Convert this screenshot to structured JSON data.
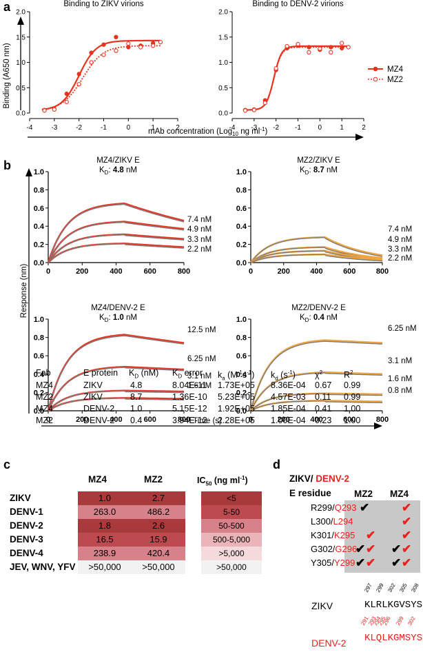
{
  "panels": {
    "a": "a",
    "b": "b",
    "c": "c",
    "d": "d"
  },
  "chart_data": [
    {
      "type": "line",
      "id": "a1",
      "title": "Binding to ZIKV virions",
      "ylabel": "Binding (A650 nm)",
      "xlabel": "",
      "xlim": [
        -4,
        2
      ],
      "ylim": [
        0,
        2.0
      ],
      "xticks": [
        "-4",
        "-3",
        "-2",
        "-1",
        "0",
        "1",
        "2"
      ],
      "yticks": [
        "0.0",
        "0.5",
        "1.0",
        "1.5",
        "2.0"
      ],
      "series": [
        {
          "name": "MZ4",
          "color": "#e8341c",
          "style": "solid",
          "marker": "filled",
          "fit": {
            "bottom": 0.05,
            "top": 1.43,
            "ec50": -2.0,
            "hill": 1.25
          },
          "points": [
            [
              -3.4,
              0.06
            ],
            [
              -3.0,
              0.08
            ],
            [
              -2.5,
              0.38
            ],
            [
              -2.0,
              0.77
            ],
            [
              -1.5,
              1.19
            ],
            [
              -1.0,
              1.35
            ],
            [
              -0.5,
              1.5
            ],
            [
              0.0,
              1.3
            ],
            [
              0.5,
              1.33
            ],
            [
              1.0,
              1.38
            ]
          ]
        },
        {
          "name": "MZ2",
          "color": "#e8341c",
          "style": "dotted",
          "marker": "open",
          "fit": {
            "bottom": 0.05,
            "top": 1.33,
            "ec50": -1.85,
            "hill": 1.05
          },
          "points": [
            [
              -3.4,
              0.05
            ],
            [
              -3.0,
              0.07
            ],
            [
              -2.5,
              0.22
            ],
            [
              -2.0,
              0.57
            ],
            [
              -1.5,
              1.0
            ],
            [
              -1.0,
              1.15
            ],
            [
              -0.5,
              1.23
            ],
            [
              0.0,
              1.37
            ],
            [
              0.5,
              1.3
            ],
            [
              1.0,
              1.33
            ],
            [
              1.3,
              1.4
            ]
          ]
        }
      ]
    },
    {
      "type": "line",
      "id": "a2",
      "title": "Binding to DENV-2 virions",
      "ylabel": "",
      "xlabel": "",
      "xlim": [
        -4,
        2
      ],
      "ylim": [
        0,
        2.0
      ],
      "xticks": [
        "-4",
        "-3",
        "-2",
        "-1",
        "0",
        "1",
        "2"
      ],
      "yticks": [
        "0.0",
        "0.5",
        "1.0",
        "1.5",
        "2.0"
      ],
      "series": [
        {
          "name": "MZ4",
          "color": "#e8341c",
          "style": "solid",
          "marker": "filled",
          "fit": {
            "bottom": 0.06,
            "top": 1.32,
            "ec50": -2.1,
            "hill": 2.5
          },
          "points": [
            [
              -3.4,
              0.06
            ],
            [
              -3.0,
              0.07
            ],
            [
              -2.5,
              0.25
            ],
            [
              -2.0,
              0.85
            ],
            [
              -1.5,
              1.28
            ],
            [
              -1.0,
              1.33
            ],
            [
              -0.5,
              1.3
            ],
            [
              0.0,
              1.25
            ],
            [
              0.5,
              1.3
            ],
            [
              1.0,
              1.28
            ]
          ]
        },
        {
          "name": "MZ2",
          "color": "#e8341c",
          "style": "dotted",
          "marker": "open",
          "fit": {
            "bottom": 0.06,
            "top": 1.3,
            "ec50": -2.1,
            "hill": 2.5
          },
          "points": [
            [
              -3.4,
              0.05
            ],
            [
              -3.0,
              0.06
            ],
            [
              -2.5,
              0.2
            ],
            [
              -2.0,
              0.88
            ],
            [
              -1.5,
              1.32
            ],
            [
              -1.0,
              1.36
            ],
            [
              -0.5,
              1.2
            ],
            [
              0.0,
              1.27
            ],
            [
              0.5,
              1.2
            ],
            [
              1.0,
              1.38
            ],
            [
              1.3,
              1.3
            ]
          ]
        }
      ]
    },
    {
      "type": "line",
      "id": "b1",
      "title": "MZ4/ZIKV E",
      "kd_prefix": "K",
      "kd_sub": "D",
      "kd_value": "4.8",
      "kd_unit": "nM",
      "xlim": [
        0,
        800
      ],
      "ylim": [
        0,
        1.0
      ],
      "xticks": [
        "0",
        "200",
        "400",
        "600",
        "800"
      ],
      "yticks": [
        "0.0",
        "0.2",
        "0.4",
        "0.6",
        "0.8",
        "1.0"
      ],
      "fit_color": "#e23a2b",
      "series": [
        {
          "name": "7.4 nM",
          "peak": 0.65,
          "end": 0.46,
          "k": 0.0035
        },
        {
          "name": "4.9 nM",
          "peak": 0.45,
          "end": 0.37,
          "k": 0.0035
        },
        {
          "name": "3.3 nM",
          "peak": 0.31,
          "end": 0.26,
          "k": 0.0035
        },
        {
          "name": "2.2 nM",
          "peak": 0.21,
          "end": 0.17,
          "k": 0.0035
        }
      ]
    },
    {
      "type": "line",
      "id": "b2",
      "title": "MZ2/ZIKV E",
      "kd_prefix": "K",
      "kd_sub": "D",
      "kd_value": "8.7",
      "kd_unit": "nM",
      "xlim": [
        0,
        800
      ],
      "ylim": [
        0,
        1.0
      ],
      "xticks": [
        "0",
        "200",
        "400",
        "600",
        "800"
      ],
      "yticks": [
        "0.0",
        "0.2",
        "0.4",
        "0.6",
        "0.8",
        "1.0"
      ],
      "fit_color": "#f0a540",
      "series": [
        {
          "name": "7.4 nM",
          "peak": 0.28,
          "end": 0.08,
          "k": 0.006
        },
        {
          "name": "4.9 nM",
          "peak": 0.17,
          "end": 0.05,
          "k": 0.006
        },
        {
          "name": "3.3 nM",
          "peak": 0.13,
          "end": 0.04,
          "k": 0.006
        },
        {
          "name": "2.2 nM",
          "peak": 0.09,
          "end": 0.03,
          "k": 0.006
        }
      ]
    },
    {
      "type": "line",
      "id": "b3",
      "title": "MZ4/DENV-2 E",
      "kd_prefix": "K",
      "kd_sub": "D",
      "kd_value": "1.0",
      "kd_unit": "nM",
      "xlim": [
        0,
        800
      ],
      "ylim": [
        0,
        1.0
      ],
      "xticks": [
        "0",
        "200",
        "400",
        "600",
        "800"
      ],
      "yticks": [
        "0.0",
        "0.2",
        "0.4",
        "0.6",
        "0.8",
        "1.0"
      ],
      "fit_color": "#e23a2b",
      "series": [
        {
          "name": "12.5 nM",
          "peak": 0.83,
          "end": 0.74,
          "k": 0.003
        },
        {
          "name": "6.25 nM",
          "peak": 0.48,
          "end": 0.45,
          "k": 0.003
        },
        {
          "name": "3.1 nM",
          "peak": 0.22,
          "end": 0.21,
          "k": 0.003
        },
        {
          "name": "1.6 nM",
          "peak": 0.14,
          "end": 0.13,
          "k": 0.003
        }
      ]
    },
    {
      "type": "line",
      "id": "b4",
      "title": "MZ2/DENV-2 E",
      "kd_prefix": "K",
      "kd_sub": "D",
      "kd_value": "0.4",
      "kd_unit": "nM",
      "xlim": [
        0,
        800
      ],
      "ylim": [
        0,
        1.0
      ],
      "xticks": [
        "0",
        "200",
        "400",
        "600",
        "800"
      ],
      "yticks": [
        "0.0",
        "0.2",
        "0.4",
        "0.6",
        "0.8",
        "1.0"
      ],
      "fit_color": "#f0a540",
      "series": [
        {
          "name": "6.25 nM",
          "peak": 0.77,
          "end": 0.74,
          "k": 0.007
        },
        {
          "name": "3.1 nM",
          "peak": 0.42,
          "end": 0.4,
          "k": 0.007
        },
        {
          "name": "1.6 nM",
          "peak": 0.19,
          "end": 0.18,
          "k": 0.007
        },
        {
          "name": "0.8 nM",
          "peak": 0.11,
          "end": 0.1,
          "k": 0.007
        }
      ]
    }
  ],
  "panel_a": {
    "xlabel_prefix": "mAb concentration (Log",
    "xlabel_sub": "10",
    "xlabel_suffix": " ng ml",
    "xlabel_sup": "-1",
    "xlabel_end": ")",
    "legend": [
      "MZ4",
      "MZ2"
    ]
  },
  "panel_b": {
    "ylabel": "Response (nm)",
    "xlabel": "Time (s)"
  },
  "kinetics_table": {
    "headers": [
      "Fab",
      "E protein",
      "K_D (nM)",
      "K_D error",
      "k_a (M⁻¹s⁻¹)",
      "k_d (s⁻¹)",
      "χ²",
      "R²"
    ],
    "h_fab": "Fab",
    "h_eprot": "E protein",
    "h_kd_a": "K",
    "h_kd_b": "D",
    "h_kd_c": " (nM)",
    "h_kderr_a": "K",
    "h_kderr_b": "D",
    "h_kderr_c": " error",
    "h_ka_a": "k",
    "h_ka_b": "a",
    "h_ka_c": " (M",
    "h_ka_d": "-1",
    "h_ka_e": "s",
    "h_ka_f": "-1",
    "h_ka_g": ")",
    "h_kd2_a": "k",
    "h_kd2_b": "d",
    "h_kd2_c": " (s",
    "h_kd2_d": "-1",
    "h_kd2_e": ")",
    "h_chi_a": "χ",
    "h_chi_b": "2",
    "h_r_a": "R",
    "h_r_b": "2",
    "rows": [
      [
        "MZ4",
        "ZIKV",
        "4.8",
        "8.04E-11",
        "1.73E+05",
        "8.36E-04",
        "0.67",
        "0.99"
      ],
      [
        "MZ2",
        "ZIKV",
        "8.7",
        "1.36E-10",
        "5.23E+05",
        "4.57E-03",
        "0.11",
        "0.99"
      ],
      [
        "MZ4",
        "DENV-2",
        "1.0",
        "5.15E-12",
        "1.92E+05",
        "1.85E-04",
        "0.41",
        "1.00"
      ],
      [
        "MZ2",
        "DENV-2",
        "0.4",
        "3.94E-12",
        "2.28E+05",
        "1.00E-04",
        "0.23",
        "1.00"
      ]
    ]
  },
  "panel_c": {
    "col_mz4": "MZ4",
    "col_mz2": "MZ2",
    "col_ic_a": "IC",
    "col_ic_b": "50",
    "col_ic_c": " (ng ml",
    "col_ic_d": "-1",
    "col_ic_e": ")",
    "rows": [
      {
        "virus": "ZIKV",
        "mz4": "1.0",
        "mz2": "2.7",
        "ic": "<5",
        "color": "#a83a3b"
      },
      {
        "virus": "DENV-1",
        "mz4": "263.0",
        "mz2": "486.2",
        "ic": "5-50",
        "color": "#d7818a"
      },
      {
        "virus": "DENV-2",
        "mz4": "1.8",
        "mz2": "2.6",
        "ic": "50-500",
        "color": "#a83a3b"
      },
      {
        "virus": "DENV-3",
        "mz4": "16.5",
        "mz2": "15.9",
        "ic": "500-5,000",
        "color": "#bd4a4f"
      },
      {
        "virus": "DENV-4",
        "mz4": "238.9",
        "mz2": "420.4",
        "ic": ">5,000",
        "color": "#d7818a"
      },
      {
        "virus": "JEV, WNV, YFV",
        "mz4": ">50,000",
        "mz2": ">50,000",
        "ic": ">50,000",
        "color": "#f2f2f2"
      }
    ],
    "ic_colors": [
      "#a83a3b",
      "#bd4a4f",
      "#d7818a",
      "#eab4b8",
      "#f4dadd",
      "#f2f2f2"
    ]
  },
  "panel_d": {
    "title_a": "ZIKV/ ",
    "title_b": "DENV-2",
    "subtitle": "E residue",
    "col_mz2": "MZ2",
    "col_mz4": "MZ4",
    "residues": [
      {
        "zikv": "R299/",
        "denv": "Q293",
        "mz2": [
          "black"
        ],
        "mz4": [
          "red"
        ]
      },
      {
        "zikv": "L300/",
        "denv": "L294",
        "mz2": [],
        "mz4": [
          "red"
        ]
      },
      {
        "zikv": "K301/",
        "denv": "K295",
        "mz2": [
          "red"
        ],
        "mz4": [
          "red"
        ]
      },
      {
        "zikv": "G302/",
        "denv": "G296",
        "mz2": [
          "black",
          "red"
        ],
        "mz4": [
          "black",
          "red"
        ]
      },
      {
        "zikv": "Y305/",
        "denv": "Y299",
        "mz2": [
          "black",
          "red"
        ],
        "mz4": [
          "black",
          "red"
        ]
      }
    ],
    "check_glyph": "✔",
    "zikv_label": "ZIKV",
    "zikv_seq": "KLRLKGVSYSLC",
    "zikv_nums": [
      "297",
      "299",
      "302",
      "305",
      "308"
    ],
    "denv_label": "DENV-2",
    "denv_seq": "KLQLKGMSYSMC",
    "denv_nums": [
      "291",
      "293",
      "294",
      "295",
      "296",
      "299",
      "302"
    ]
  }
}
